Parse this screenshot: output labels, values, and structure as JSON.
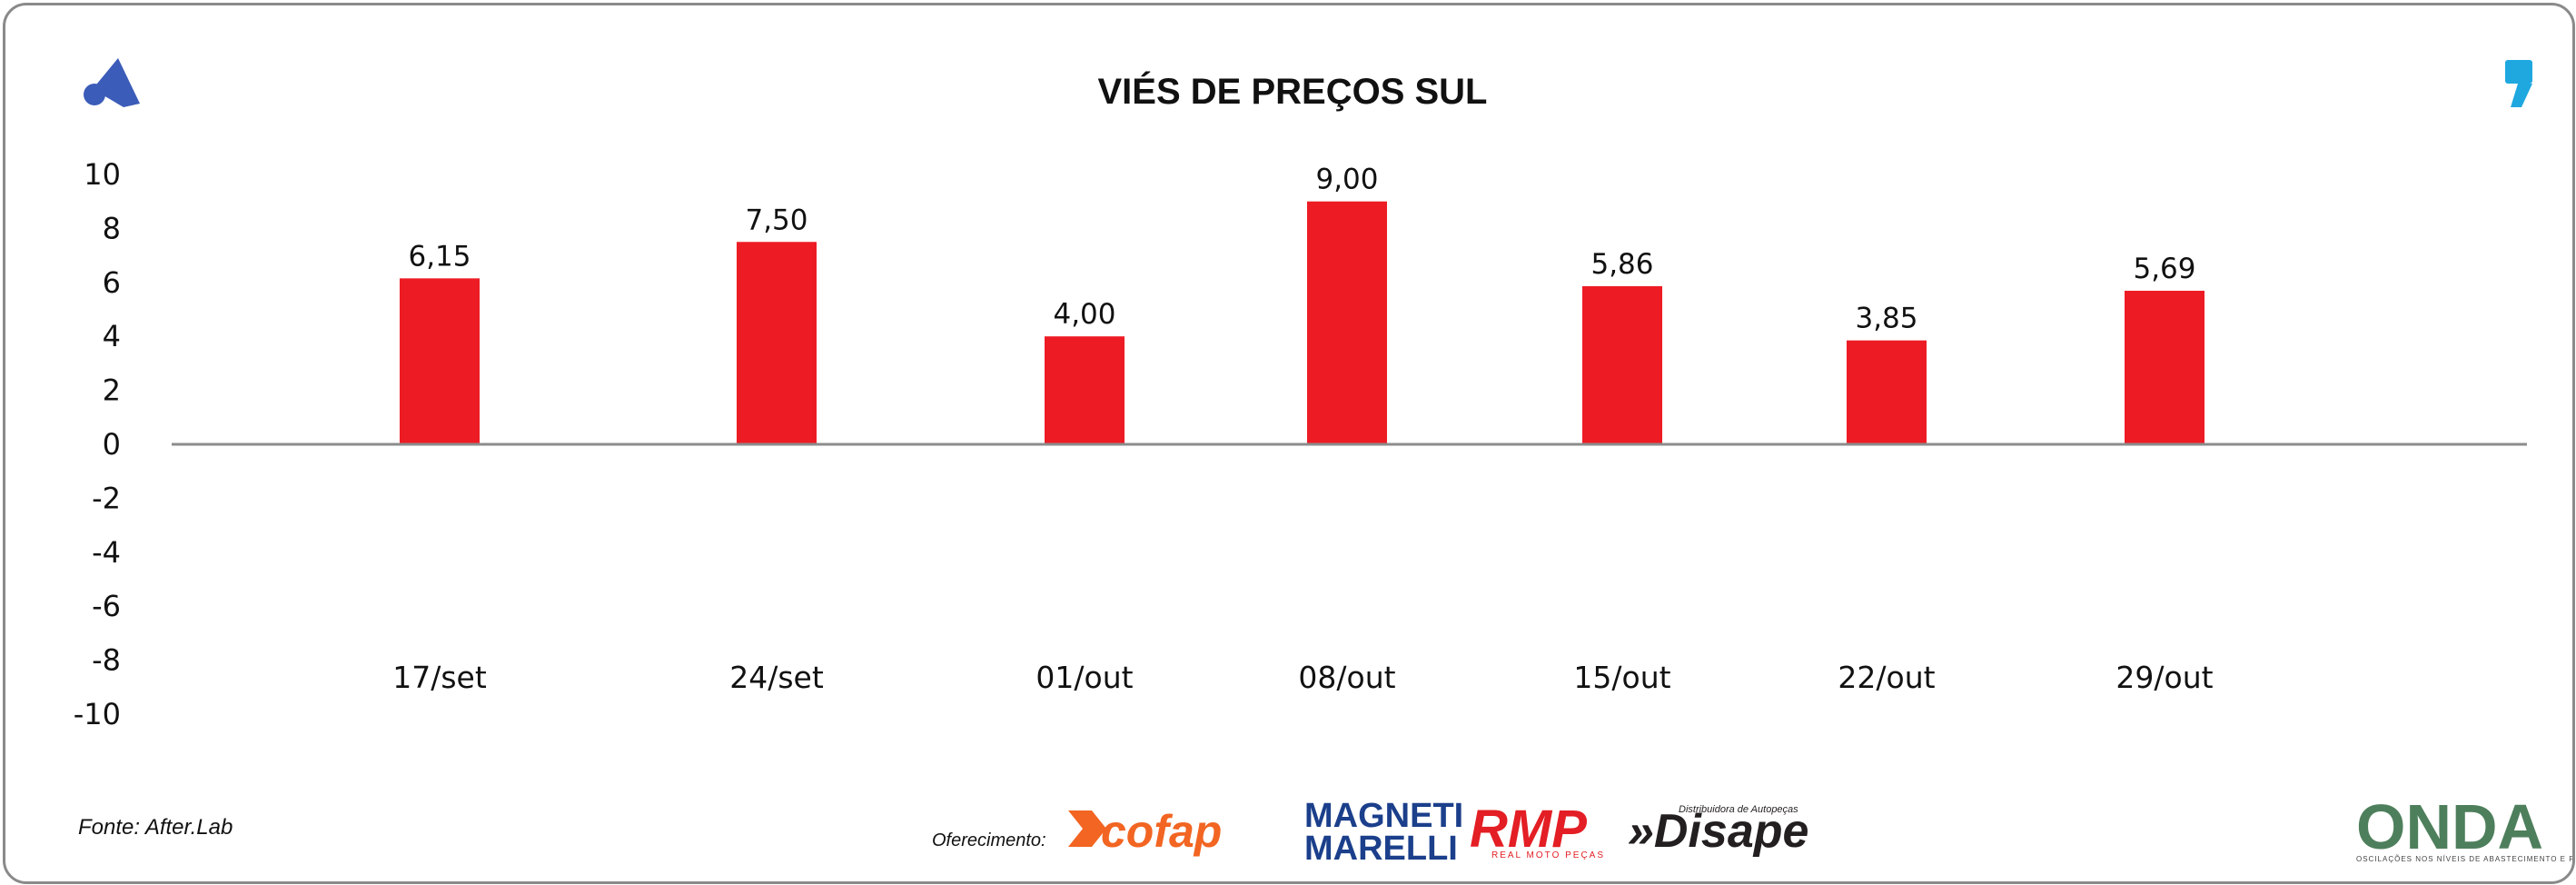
{
  "colors": {
    "bar": "#ED1C24",
    "axis": "#8C8C8C",
    "brand_blue": "#3B5CB8",
    "quote_cyan": "#1FA8E0",
    "cofap_orange": "#F26522",
    "magneti_blue": "#1B3F8B",
    "rmp_red": "#E31E24",
    "disape_dark": "#231F20"
  },
  "icons": {
    "brand_logo": "a-logo-icon",
    "quote_mark": "quote-mark-icon"
  },
  "footer": {
    "source": "Fonte: After.Lab",
    "sponsor_label": "Oferecimento:",
    "sponsors": {
      "cofap": "cofap",
      "magneti_line1": "MAGNETI",
      "magneti_line2": "MARELLI",
      "rmp": "RMP",
      "rmp_sub": "REAL MOTO PEÇAS",
      "disape": "»Disape",
      "disape_sub": "Distribuidora de Autopeças",
      "onda": "ONDA",
      "onda_sub": "OSCILAÇÕES NOS NÍVEIS DE ABASTECIMENTO E PREÇO"
    }
  },
  "chart_data": {
    "type": "bar",
    "title": "VIÉS DE PREÇOS SUL",
    "categories": [
      "17/set",
      "24/set",
      "01/out",
      "08/out",
      "15/out",
      "22/out",
      "29/out"
    ],
    "values": [
      6.15,
      7.5,
      4.0,
      9.0,
      5.86,
      3.85,
      5.69
    ],
    "data_labels": [
      "6,15",
      "7,50",
      "4,00",
      "9,00",
      "5,86",
      "3,85",
      "5,69"
    ],
    "ylim": [
      -10,
      10
    ],
    "yticks": [
      10,
      8,
      6,
      4,
      2,
      0,
      -2,
      -4,
      -6,
      -8,
      -10
    ],
    "xlabel": "",
    "ylabel": "",
    "grid": false,
    "legend": "none"
  }
}
